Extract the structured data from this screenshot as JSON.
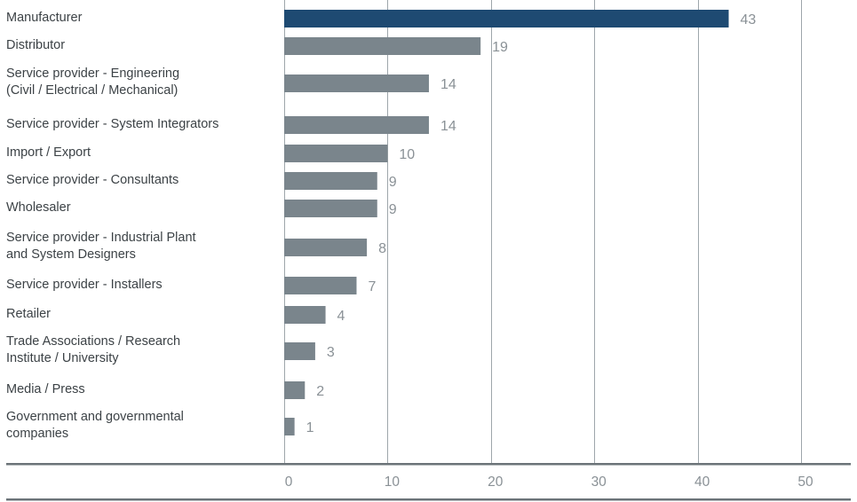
{
  "chart_data": {
    "type": "bar",
    "orientation": "horizontal",
    "categories": [
      "Manufacturer",
      "Distributor",
      "Service provider - Engineering\n(Civil / Electrical / Mechanical)",
      "Service provider - System Integrators",
      "Import / Export",
      "Service provider - Consultants",
      "Wholesaler",
      "Service provider - Industrial Plant\nand System Designers",
      "Service provider - Installers",
      "Retailer",
      "Trade Associations / Research\nInstitute / University",
      "Media / Press",
      "Government and governmental\ncompanies"
    ],
    "values": [
      43,
      19,
      14,
      14,
      10,
      9,
      9,
      8,
      7,
      4,
      3,
      2,
      1
    ],
    "xlim": [
      0,
      50
    ],
    "xticks": [
      0,
      10,
      20,
      30,
      40,
      50
    ],
    "title": "",
    "xlabel": "",
    "ylabel": "",
    "grid": true,
    "highlight_index": 0,
    "colors": {
      "highlight": "#1e4a72",
      "bar": "#7a858c",
      "grid": "#9ea6ab",
      "axis": "#6b7378"
    }
  }
}
